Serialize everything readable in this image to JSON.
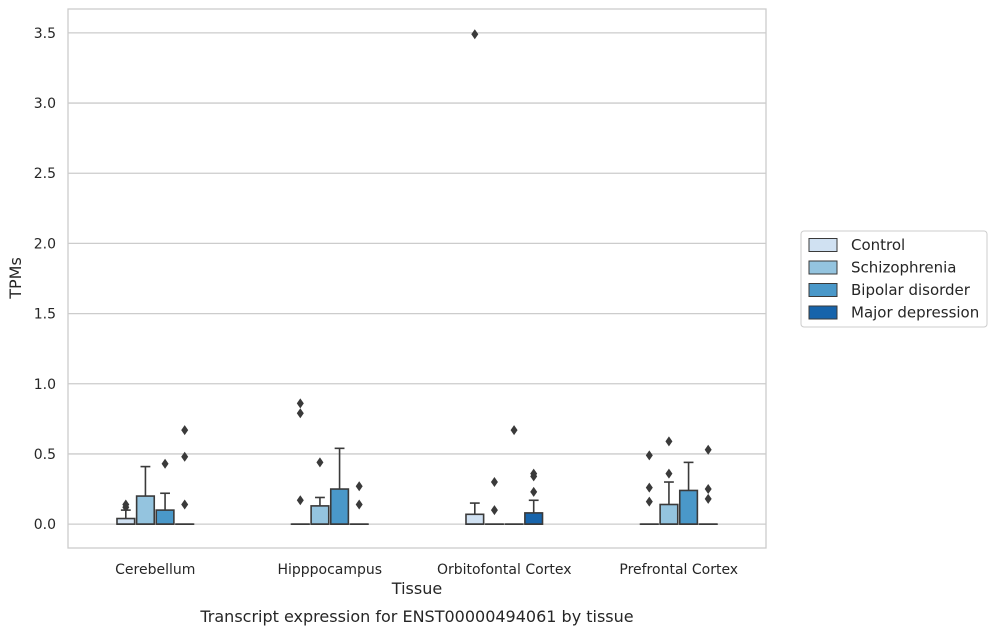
{
  "chart_data": {
    "type": "box",
    "title": "",
    "xlabel": "Tissue",
    "ylabel": "TPMs",
    "caption": "Transcript expression for ENST00000494061 by tissue",
    "ylim": [
      -0.17,
      3.67
    ],
    "yticks": [
      0.0,
      0.5,
      1.0,
      1.5,
      2.0,
      2.5,
      3.0,
      3.5
    ],
    "ytick_labels": [
      "0.0",
      "0.5",
      "1.0",
      "1.5",
      "2.0",
      "2.5",
      "3.0",
      "3.5"
    ],
    "grid": "horizontal",
    "legend_position": "right",
    "categories": [
      "Cerebellum",
      "Hipppocampus",
      "Orbitofontal Cortex",
      "Prefrontal Cortex"
    ],
    "series": [
      {
        "name": "Control",
        "color": "#d0e1f2",
        "boxes": [
          {
            "q1": 0.0,
            "median": 0.0,
            "q3": 0.04,
            "whisker_low": 0.0,
            "whisker_high": 0.1,
            "outliers": [
              0.12,
              0.14
            ]
          },
          {
            "q1": 0.0,
            "median": 0.0,
            "q3": 0.0,
            "whisker_low": 0.0,
            "whisker_high": 0.0,
            "outliers": [
              0.17,
              0.79,
              0.86
            ]
          },
          {
            "q1": 0.0,
            "median": 0.0,
            "q3": 0.07,
            "whisker_low": 0.0,
            "whisker_high": 0.15,
            "outliers": [
              3.49
            ]
          },
          {
            "q1": 0.0,
            "median": 0.0,
            "q3": 0.0,
            "whisker_low": 0.0,
            "whisker_high": 0.0,
            "outliers": [
              0.16,
              0.26,
              0.49
            ]
          }
        ]
      },
      {
        "name": "Schizophrenia",
        "color": "#94c4df",
        "boxes": [
          {
            "q1": 0.0,
            "median": 0.0,
            "q3": 0.2,
            "whisker_low": 0.0,
            "whisker_high": 0.41,
            "outliers": []
          },
          {
            "q1": 0.0,
            "median": 0.0,
            "q3": 0.13,
            "whisker_low": 0.0,
            "whisker_high": 0.19,
            "outliers": [
              0.44
            ]
          },
          {
            "q1": 0.0,
            "median": 0.0,
            "q3": 0.0,
            "whisker_low": 0.0,
            "whisker_high": 0.0,
            "outliers": [
              0.1,
              0.3
            ]
          },
          {
            "q1": 0.0,
            "median": 0.0,
            "q3": 0.14,
            "whisker_low": 0.0,
            "whisker_high": 0.3,
            "outliers": [
              0.36,
              0.59
            ]
          }
        ]
      },
      {
        "name": "Bipolar disorder",
        "color": "#4a98c9",
        "boxes": [
          {
            "q1": 0.0,
            "median": 0.0,
            "q3": 0.1,
            "whisker_low": 0.0,
            "whisker_high": 0.22,
            "outliers": [
              0.43
            ]
          },
          {
            "q1": 0.0,
            "median": 0.0,
            "q3": 0.25,
            "whisker_low": 0.0,
            "whisker_high": 0.54,
            "outliers": []
          },
          {
            "q1": 0.0,
            "median": 0.0,
            "q3": 0.0,
            "whisker_low": 0.0,
            "whisker_high": 0.0,
            "outliers": [
              0.67
            ]
          },
          {
            "q1": 0.0,
            "median": 0.0,
            "q3": 0.24,
            "whisker_low": 0.0,
            "whisker_high": 0.44,
            "outliers": []
          }
        ]
      },
      {
        "name": "Major depression",
        "color": "#1764ab",
        "boxes": [
          {
            "q1": 0.0,
            "median": 0.0,
            "q3": 0.0,
            "whisker_low": 0.0,
            "whisker_high": 0.0,
            "outliers": [
              0.14,
              0.48,
              0.67
            ]
          },
          {
            "q1": 0.0,
            "median": 0.0,
            "q3": 0.0,
            "whisker_low": 0.0,
            "whisker_high": 0.0,
            "outliers": [
              0.14,
              0.27
            ]
          },
          {
            "q1": 0.0,
            "median": 0.0,
            "q3": 0.08,
            "whisker_low": 0.0,
            "whisker_high": 0.17,
            "outliers": [
              0.23,
              0.34,
              0.36
            ]
          },
          {
            "q1": 0.0,
            "median": 0.0,
            "q3": 0.0,
            "whisker_low": 0.0,
            "whisker_high": 0.0,
            "outliers": [
              0.18,
              0.25,
              0.53
            ]
          }
        ]
      }
    ]
  }
}
